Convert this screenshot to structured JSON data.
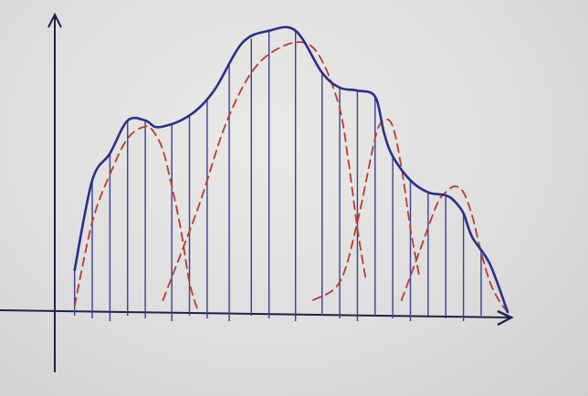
{
  "chart_data": {
    "type": "area",
    "title": "",
    "xlabel": "",
    "ylabel": "",
    "x_range": [
      0,
      100
    ],
    "y_range": [
      0,
      100
    ],
    "grid": false,
    "legend": "none",
    "colors": {
      "envelope": "#2a2f8a",
      "components": "#c0392b",
      "verticals": "#3a3f90",
      "axes": "#1e2244"
    },
    "envelope": {
      "name": "",
      "x": [
        2,
        6,
        10,
        14,
        18,
        20,
        22,
        26,
        30,
        34,
        40,
        46,
        52,
        58,
        62,
        66,
        70,
        72,
        74,
        78,
        82,
        86,
        88,
        90,
        92,
        96,
        100
      ],
      "y": [
        14,
        44,
        53,
        64,
        64,
        62,
        62,
        64,
        68,
        75,
        90,
        94,
        94,
        80,
        75,
        74,
        72,
        60,
        52,
        44,
        40,
        39,
        37,
        33,
        25,
        16,
        0
      ]
    },
    "components": [
      {
        "name": "",
        "x": [
          2,
          6,
          10,
          14,
          18,
          20,
          22,
          24,
          26,
          28,
          30
        ],
        "y": [
          2,
          30,
          46,
          58,
          62,
          60,
          54,
          42,
          28,
          10,
          0
        ]
      },
      {
        "name": "",
        "x": [
          22,
          30,
          36,
          42,
          48,
          54,
          58,
          62,
          64,
          66,
          68
        ],
        "y": [
          4,
          35,
          62,
          80,
          88,
          90,
          84,
          68,
          50,
          28,
          10
        ]
      },
      {
        "name": "",
        "x": [
          56,
          62,
          66,
          70,
          72,
          74,
          76,
          78,
          80
        ],
        "y": [
          4,
          10,
          30,
          58,
          64,
          62,
          48,
          28,
          12
        ]
      },
      {
        "name": "",
        "x": [
          76,
          80,
          84,
          86,
          88,
          90,
          92,
          94,
          96,
          98,
          100
        ],
        "y": [
          4,
          20,
          36,
          40,
          42,
          40,
          32,
          20,
          10,
          4,
          0
        ]
      }
    ],
    "verticals_x": [
      2,
      6,
      10,
      14,
      18,
      24,
      28,
      32,
      37,
      42,
      46,
      52,
      58,
      62,
      66,
      70,
      74,
      78,
      82,
      86,
      90,
      94
    ]
  }
}
